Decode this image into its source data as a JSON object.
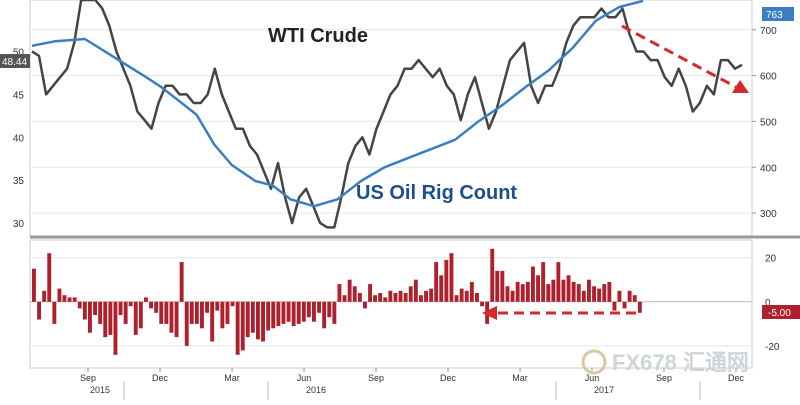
{
  "chart_data": [
    {
      "type": "line",
      "annotations": {
        "crude_label": "WTI Crude",
        "rig_label": "US Oil Rig Count"
      },
      "x_ticks": [
        "Sep",
        "Dec",
        "Mar",
        "Jun",
        "Sep",
        "Dec",
        "Mar",
        "Jun",
        "Sep",
        "Dec"
      ],
      "year_labels": [
        "2015",
        "2016",
        "2017"
      ],
      "left_axis": {
        "ticks": [
          30,
          35,
          40,
          45,
          50
        ],
        "ylim": [
          28.5,
          56
        ],
        "current_value_label": "48.44"
      },
      "right_axis": {
        "ticks": [
          300,
          400,
          500,
          600,
          700
        ],
        "ylim": [
          250,
          765
        ],
        "current_value_label": "763"
      },
      "series": [
        {
          "axis": "left",
          "color": "#444444",
          "points": [
            [
              0,
              50
            ],
            [
              1,
              49.5
            ],
            [
              2,
              45
            ],
            [
              3,
              46
            ],
            [
              4,
              47
            ],
            [
              5,
              48
            ],
            [
              6,
              51
            ],
            [
              7,
              56
            ],
            [
              8,
              56
            ],
            [
              9,
              56
            ],
            [
              10,
              55
            ],
            [
              11,
              53
            ],
            [
              12,
              50
            ],
            [
              13,
              48
            ],
            [
              14,
              46
            ],
            [
              15,
              43
            ],
            [
              16,
              42
            ],
            [
              17,
              41
            ],
            [
              18,
              44
            ],
            [
              19,
              46
            ],
            [
              20,
              46
            ],
            [
              21,
              45
            ],
            [
              22,
              45
            ],
            [
              23,
              44
            ],
            [
              24,
              44
            ],
            [
              25,
              45
            ],
            [
              26,
              48
            ],
            [
              27,
              45
            ],
            [
              28,
              43
            ],
            [
              29,
              41
            ],
            [
              30,
              41
            ],
            [
              31,
              39
            ],
            [
              32,
              38
            ],
            [
              33,
              36
            ],
            [
              34,
              34
            ],
            [
              35,
              37
            ],
            [
              36,
              33
            ],
            [
              37,
              30
            ],
            [
              38,
              33
            ],
            [
              39,
              34
            ],
            [
              40,
              32
            ],
            [
              41,
              30
            ],
            [
              42,
              29.5
            ],
            [
              43,
              29.5
            ],
            [
              44,
              33
            ],
            [
              45,
              37
            ],
            [
              46,
              39
            ],
            [
              47,
              40
            ],
            [
              48,
              38
            ],
            [
              49,
              41
            ],
            [
              50,
              43
            ],
            [
              51,
              45
            ],
            [
              52,
              46
            ],
            [
              53,
              48
            ],
            [
              54,
              48
            ],
            [
              55,
              49
            ],
            [
              56,
              48
            ],
            [
              57,
              47
            ],
            [
              58,
              48
            ],
            [
              59,
              46
            ],
            [
              60,
              45
            ],
            [
              61,
              42
            ],
            [
              62,
              45
            ],
            [
              63,
              47
            ],
            [
              64,
              44
            ],
            [
              65,
              41
            ],
            [
              66,
              43
            ],
            [
              67,
              46
            ],
            [
              68,
              49
            ],
            [
              69,
              50
            ],
            [
              70,
              51
            ],
            [
              71,
              46
            ],
            [
              72,
              44
            ],
            [
              73,
              46
            ],
            [
              74,
              46
            ],
            [
              75,
              48
            ],
            [
              76,
              51
            ],
            [
              77,
              53
            ],
            [
              78,
              54
            ],
            [
              79,
              54
            ],
            [
              80,
              54
            ],
            [
              81,
              55
            ],
            [
              82,
              54
            ],
            [
              83,
              54
            ],
            [
              84,
              55
            ],
            [
              85,
              52
            ],
            [
              86,
              50
            ],
            [
              87,
              50
            ],
            [
              88,
              49
            ],
            [
              89,
              49
            ],
            [
              90,
              47
            ],
            [
              91,
              46
            ],
            [
              92,
              48
            ],
            [
              93,
              46
            ],
            [
              94,
              43
            ],
            [
              95,
              44
            ],
            [
              96,
              46
            ],
            [
              97,
              45
            ],
            [
              98,
              49
            ],
            [
              99,
              49
            ],
            [
              100,
              48
            ],
            [
              101,
              48.44
            ]
          ]
        },
        {
          "axis": "right",
          "color": "#3a7fc1",
          "points": [
            [
              0,
              665
            ],
            [
              4,
              675
            ],
            [
              9,
              680
            ],
            [
              14,
              640
            ],
            [
              19,
              600
            ],
            [
              22,
              575
            ],
            [
              25,
              545
            ],
            [
              28,
              515
            ],
            [
              31,
              450
            ],
            [
              34,
              405
            ],
            [
              38,
              370
            ],
            [
              41,
              360
            ],
            [
              44,
              330
            ],
            [
              48,
              315
            ],
            [
              52,
              330
            ],
            [
              56,
              370
            ],
            [
              60,
              400
            ],
            [
              64,
              420
            ],
            [
              68,
              440
            ],
            [
              72,
              460
            ],
            [
              76,
              500
            ],
            [
              80,
              535
            ],
            [
              84,
              575
            ],
            [
              88,
              612
            ],
            [
              92,
              660
            ],
            [
              96,
              720
            ],
            [
              100,
              750
            ],
            [
              104,
              763
            ]
          ]
        }
      ]
    },
    {
      "type": "bar",
      "axis": {
        "ticks": [
          20,
          0,
          -20
        ],
        "ylim": [
          -30,
          28
        ],
        "current_value_label": "-5.00"
      },
      "color": "#b0202c",
      "values": [
        15,
        -8,
        5,
        22,
        -10,
        6,
        3,
        2,
        2,
        -3,
        -8,
        -14,
        -6,
        -10,
        -16,
        -15,
        -24,
        -6,
        -10,
        -2,
        -15,
        -12,
        2,
        -3,
        -5,
        -10,
        -10,
        -14,
        -16,
        18,
        -20,
        -10,
        -10,
        -12,
        -5,
        -18,
        -4,
        -12,
        -10,
        -2,
        -24,
        -22,
        -16,
        -14,
        -17,
        -18,
        -13,
        -12,
        -11,
        -10,
        -9,
        -11,
        -10,
        -9,
        -7,
        -9,
        -5,
        -12,
        -7,
        -10,
        8,
        3,
        10,
        7,
        4,
        -3,
        8,
        3,
        4,
        2,
        5,
        4,
        5,
        4,
        7,
        10,
        3,
        5,
        6,
        18,
        12,
        19,
        22,
        3,
        6,
        5,
        9,
        4,
        -2,
        -10,
        24,
        14,
        14,
        7,
        5,
        9,
        8,
        9,
        16,
        12,
        18,
        8,
        10,
        18,
        10,
        12,
        9,
        8,
        5,
        10,
        7,
        6,
        8,
        9,
        -4,
        5,
        -3,
        5,
        3,
        -5
      ]
    }
  ]
}
